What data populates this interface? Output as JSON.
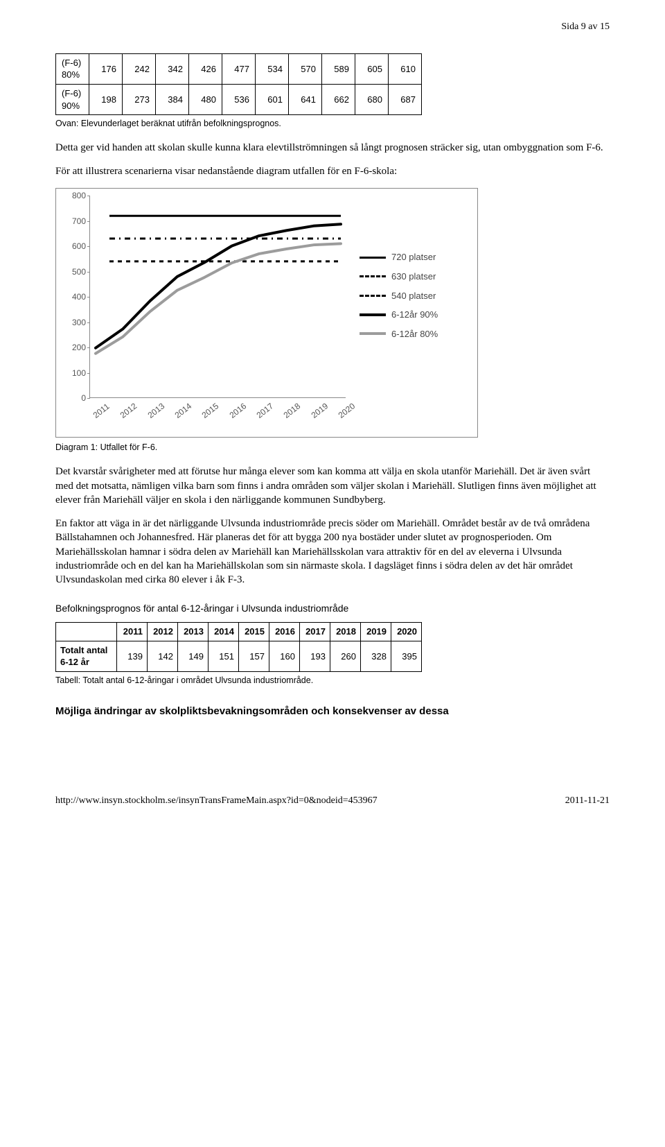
{
  "page_counter": "Sida 9 av 15",
  "top_table": {
    "rows": [
      {
        "label_top": "(F-6)",
        "label_bottom": "80%",
        "values": [
          "176",
          "242",
          "342",
          "426",
          "477",
          "534",
          "570",
          "589",
          "605",
          "610"
        ]
      },
      {
        "label_top": "(F-6)",
        "label_bottom": "90%",
        "values": [
          "198",
          "273",
          "384",
          "480",
          "536",
          "601",
          "641",
          "662",
          "680",
          "687"
        ]
      }
    ],
    "note": "Ovan: Elevunderlaget beräknat utifrån befolkningsprognos."
  },
  "para1": "Detta ger vid handen att skolan skulle kunna klara elevtillströmningen så långt prognosen sträcker sig, utan ombyggnation som F-6.",
  "para2": "För att illustrera scenarierna visar nedanstående diagram utfallen för en F-6-skola:",
  "chart": {
    "type": "line",
    "ylim": [
      0,
      800
    ],
    "ytick_step": 100,
    "x_categories": [
      "2011",
      "2012",
      "2013",
      "2014",
      "2015",
      "2016",
      "2017",
      "2018",
      "2019",
      "2020"
    ],
    "series": [
      {
        "name": "6-12år 90%",
        "color": "#000000",
        "width": 4,
        "dash": "none",
        "values": [
          198,
          273,
          384,
          480,
          536,
          601,
          641,
          662,
          680,
          687
        ]
      },
      {
        "name": "6-12år 80%",
        "color": "#9c9c9c",
        "width": 4,
        "dash": "none",
        "values": [
          176,
          242,
          342,
          426,
          477,
          534,
          570,
          589,
          605,
          610
        ]
      }
    ],
    "refs": [
      {
        "name": "720 platser",
        "value": 720,
        "color": "#000000",
        "width": 3,
        "dash": "solid"
      },
      {
        "name": "630 platser",
        "value": 630,
        "color": "#000000",
        "width": 3,
        "dash": "8,6,2,6"
      },
      {
        "name": "540 platser",
        "value": 540,
        "color": "#000000",
        "width": 3,
        "dash": "6,6"
      }
    ],
    "legend_order": [
      "720 platser",
      "630 platser",
      "540 platser",
      "6-12år 90%",
      "6-12år 80%"
    ],
    "background_color": "#ffffff",
    "axis_color": "#888888",
    "label_fontsize": 12
  },
  "chart_caption": "Diagram 1: Utfallet för F-6.",
  "para3": "Det kvarstår svårigheter med att förutse hur många elever som kan komma att välja en skola utanför Mariehäll. Det är även svårt med det motsatta, nämligen vilka barn som finns i andra områden som väljer skolan i Mariehäll. Slutligen finns även möjlighet att elever från Mariehäll väljer en skola i den närliggande kommunen Sundbyberg.",
  "para4": "En faktor att väga in är det närliggande Ulvsunda industriområde precis söder om Mariehäll. Området består av de två områdena Bällstahamnen och Johannesfred. Här planeras det för att bygga 200 nya bostäder under slutet av prognosperioden. Om Mariehällsskolan hamnar i södra delen av Mariehäll kan Mariehällsskolan vara attraktiv för en del av eleverna i Ulvsunda industriområde och en del kan ha Mariehällskolan som sin närmaste skola. I dagsläget finns i södra delen av det här området Ulvsundaskolan med cirka 80 elever i åk F-3.",
  "subheading": "Befolkningsprognos för antal 6-12-åringar i Ulvsunda industriområde",
  "years_table": {
    "columns": [
      "",
      "2011",
      "2012",
      "2013",
      "2014",
      "2015",
      "2016",
      "2017",
      "2018",
      "2019",
      "2020"
    ],
    "rows": [
      {
        "label_top": "Totalt antal",
        "label_bottom": "6-12 år",
        "values": [
          "139",
          "142",
          "149",
          "151",
          "157",
          "160",
          "193",
          "260",
          "328",
          "395"
        ]
      }
    ],
    "note": "Tabell: Totalt antal 6-12-åringar i området Ulvsunda industriområde."
  },
  "final_heading": "Möjliga ändringar av skolpliktsbevakningsområden och konsekvenser av dessa",
  "footer": {
    "url": "http://www.insyn.stockholm.se/insynTransFrameMain.aspx?id=0&nodeid=453967",
    "date": "2011-11-21"
  }
}
